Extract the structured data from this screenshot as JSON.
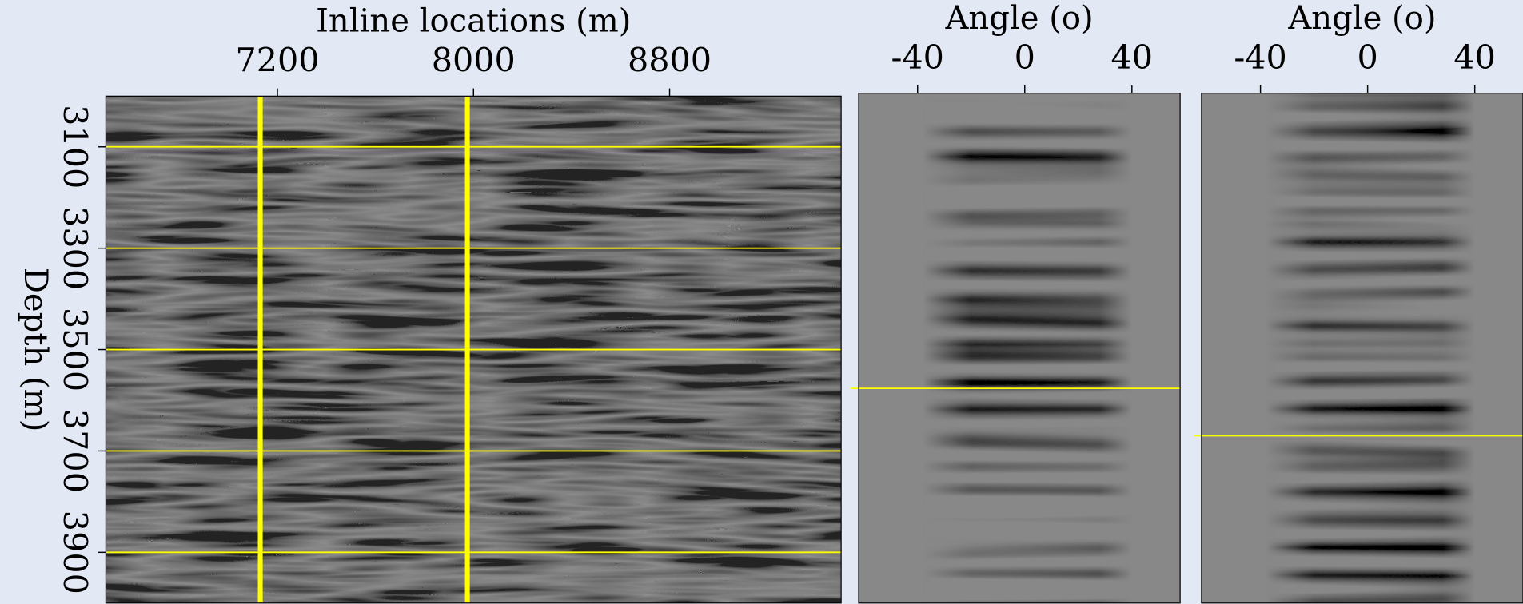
{
  "chart_data": [
    {
      "type": "seismic-section",
      "x_label": "Inline locations (m)",
      "y_label": "Depth (m)",
      "xlim": [
        6500,
        9500
      ],
      "xticks": [
        7200,
        8000,
        8800
      ],
      "ylim": [
        3000,
        4000
      ],
      "yticks": [
        3100,
        3300,
        3500,
        3700,
        3900
      ],
      "y_reversed": true,
      "grid": true,
      "grid_color": "#ffff00",
      "markers_x": [
        7130,
        7975
      ],
      "marker_color": "#ffff00"
    },
    {
      "type": "angle-gather",
      "x_label": "Angle (o)",
      "xlim": [
        -62,
        58
      ],
      "xticks": [
        -40,
        0,
        40
      ],
      "ylim": [
        3000,
        4000
      ],
      "y_reversed": true,
      "markers_y": [
        3579
      ],
      "marker_color": "#ffff00"
    },
    {
      "type": "angle-gather",
      "x_label": "Angle (o)",
      "xlim": [
        -62,
        58
      ],
      "xticks": [
        -40,
        0,
        40
      ],
      "ylim": [
        3000,
        4000
      ],
      "y_reversed": true,
      "markers_y": [
        3672
      ],
      "marker_color": "#ffff00"
    }
  ]
}
